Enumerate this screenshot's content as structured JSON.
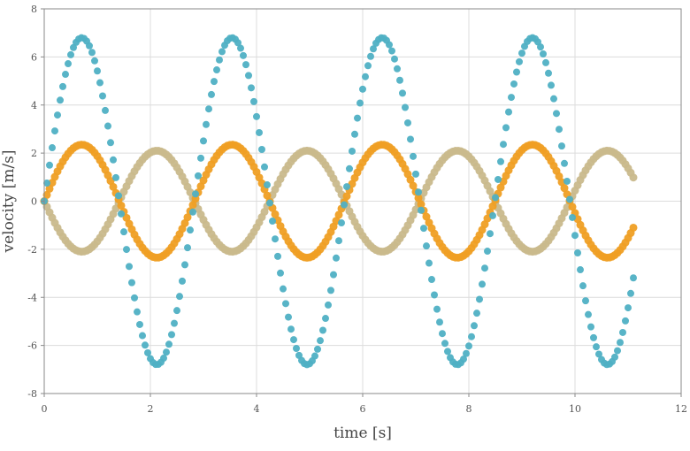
{
  "chart_data": {
    "type": "scatter",
    "xlabel": "time [s]",
    "ylabel": "velocity [m/s]",
    "xlim": [
      0,
      12
    ],
    "ylim": [
      -8,
      8
    ],
    "xticks": [
      0,
      2,
      4,
      6,
      8,
      10,
      12
    ],
    "yticks": [
      -8,
      -6,
      -4,
      -2,
      0,
      2,
      4,
      6,
      8
    ],
    "xtick_labels": [
      "0",
      "2",
      "4",
      "6",
      "8",
      "10",
      "12"
    ],
    "ytick_labels": [
      "-8",
      "-6",
      "-4",
      "-2",
      "0",
      "2",
      "4",
      "6",
      "8"
    ],
    "grid": true,
    "legend": "none",
    "x_range_of_points": [
      0,
      11.1
    ],
    "point_count_per_series": 223,
    "series": [
      {
        "color": "#c9b98c",
        "marker_radius": 4.5,
        "amplitude": 2.1,
        "period": 2.83,
        "phase": 3.1416
      },
      {
        "color": "#ef9f24",
        "marker_radius": 4.5,
        "amplitude": 2.35,
        "period": 2.83,
        "phase": 0.0
      },
      {
        "color": "#4fb0c4",
        "marker_radius": 4,
        "amplitude": 6.8,
        "period": 2.83,
        "phase": 0.0
      }
    ]
  }
}
